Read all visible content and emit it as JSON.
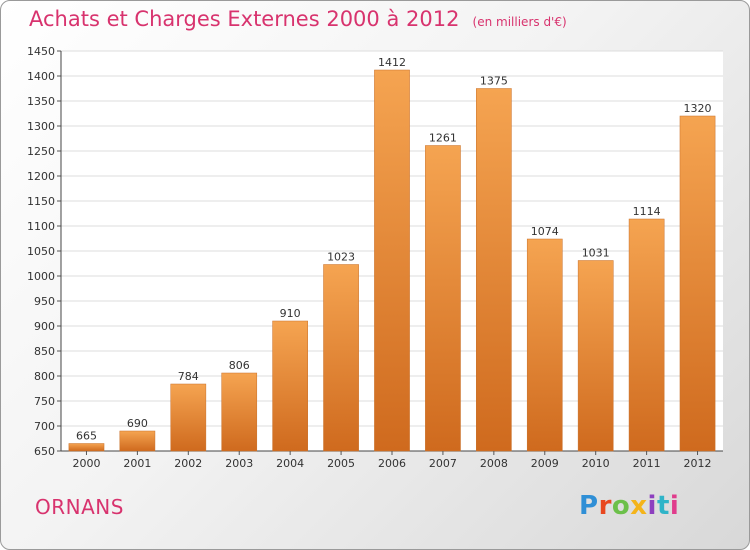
{
  "header": {
    "title": "Achats et Charges Externes 2000 à 2012",
    "unit": "(en milliers d'€)"
  },
  "footer": {
    "city": "ORNANS",
    "logo_text": "Proxiti",
    "logo_colors": [
      "#2f8fd6",
      "#e8471f",
      "#6cc04a",
      "#f4b41a",
      "#8d3fbf",
      "#2fb4c8",
      "#e03c8c"
    ]
  },
  "chart_data": {
    "type": "bar",
    "categories": [
      "2000",
      "2001",
      "2002",
      "2003",
      "2004",
      "2005",
      "2006",
      "2007",
      "2008",
      "2009",
      "2010",
      "2011",
      "2012"
    ],
    "values": [
      665,
      690,
      784,
      806,
      910,
      1023,
      1412,
      1261,
      1375,
      1074,
      1031,
      1114,
      1320
    ],
    "ylim": [
      650,
      1450
    ],
    "yticks": [
      650,
      700,
      750,
      800,
      850,
      900,
      950,
      1000,
      1050,
      1100,
      1150,
      1200,
      1250,
      1300,
      1350,
      1400,
      1450
    ],
    "grid": true,
    "bar_color_top": "#f5a451",
    "bar_color_bottom": "#cf6a1e"
  }
}
